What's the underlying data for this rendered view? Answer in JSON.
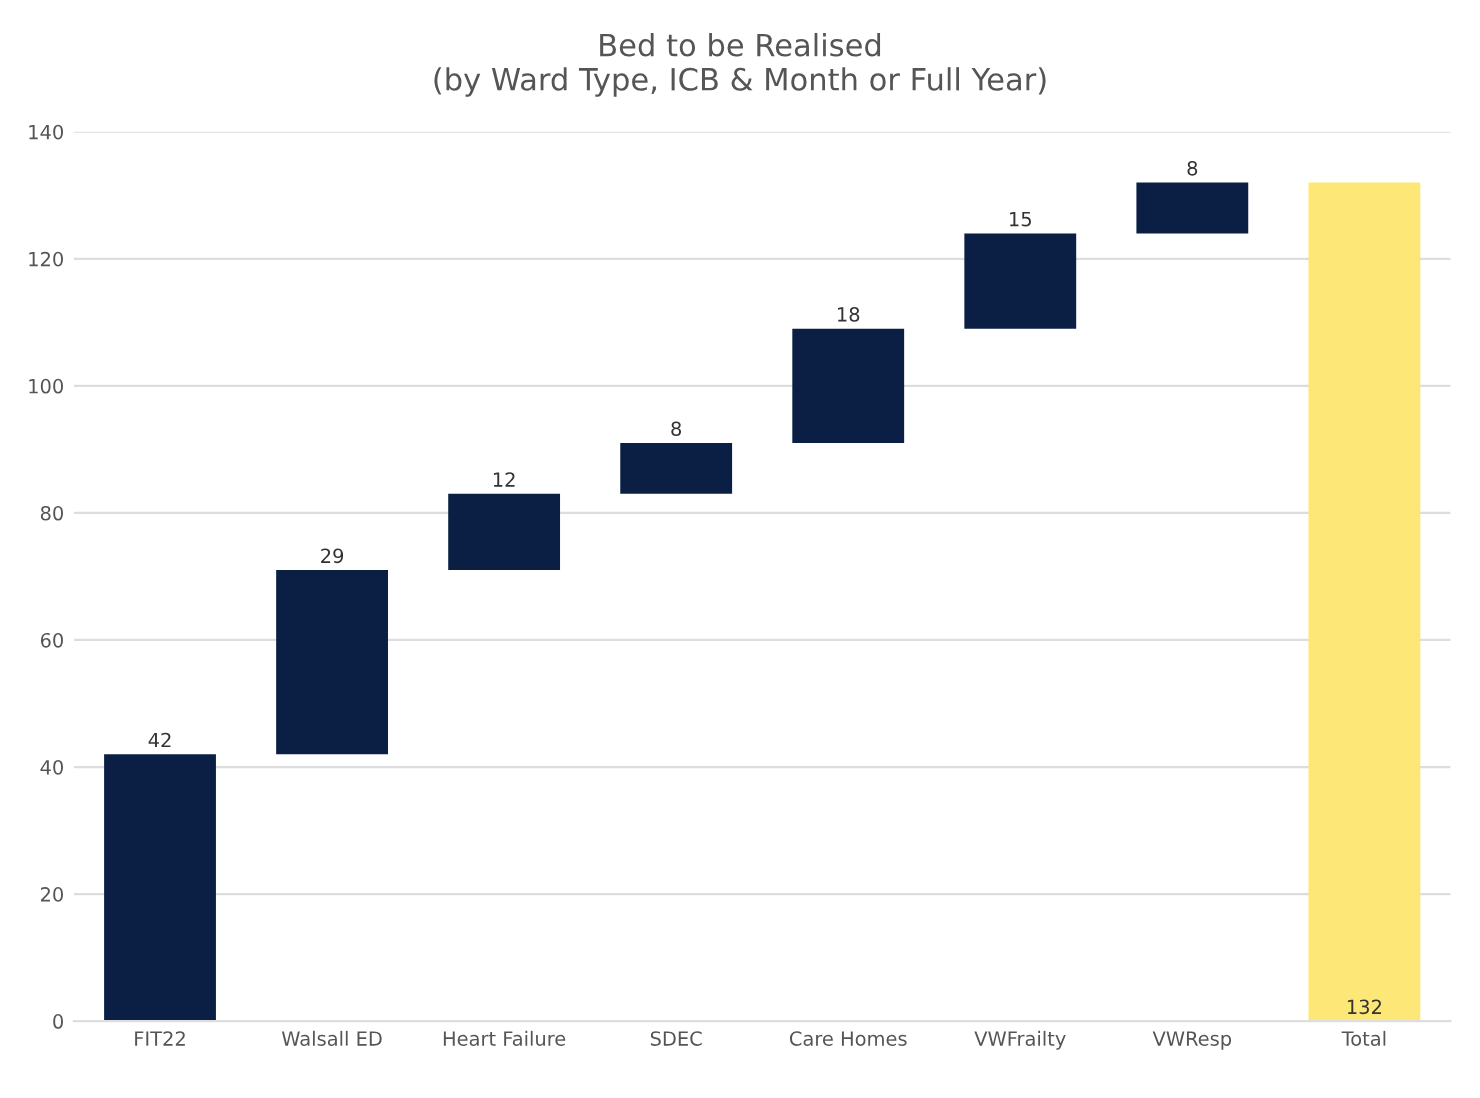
{
  "chart_data": {
    "type": "bar",
    "title": "Bed to be Realised\n(by Ward Type, ICB & Month or Full Year)",
    "categories": [
      "FIT22",
      "Walsall ED",
      "Heart Failure",
      "SDEC",
      "Care Homes",
      "VWFrailty",
      "VWResp",
      "Total"
    ],
    "values": [
      42,
      29,
      12,
      8,
      18,
      15,
      8,
      132
    ],
    "base": [
      0,
      42,
      71,
      83,
      91,
      109,
      124,
      0
    ],
    "colors": [
      "#0b1f44",
      "#0b1f44",
      "#0b1f44",
      "#0b1f44",
      "#0b1f44",
      "#0b1f44",
      "#0b1f44",
      "#fde877"
    ],
    "data_labels": true,
    "ylim": [
      0,
      140
    ],
    "yticks": [
      0,
      20,
      40,
      60,
      80,
      100,
      120,
      140
    ],
    "grid": "y"
  }
}
